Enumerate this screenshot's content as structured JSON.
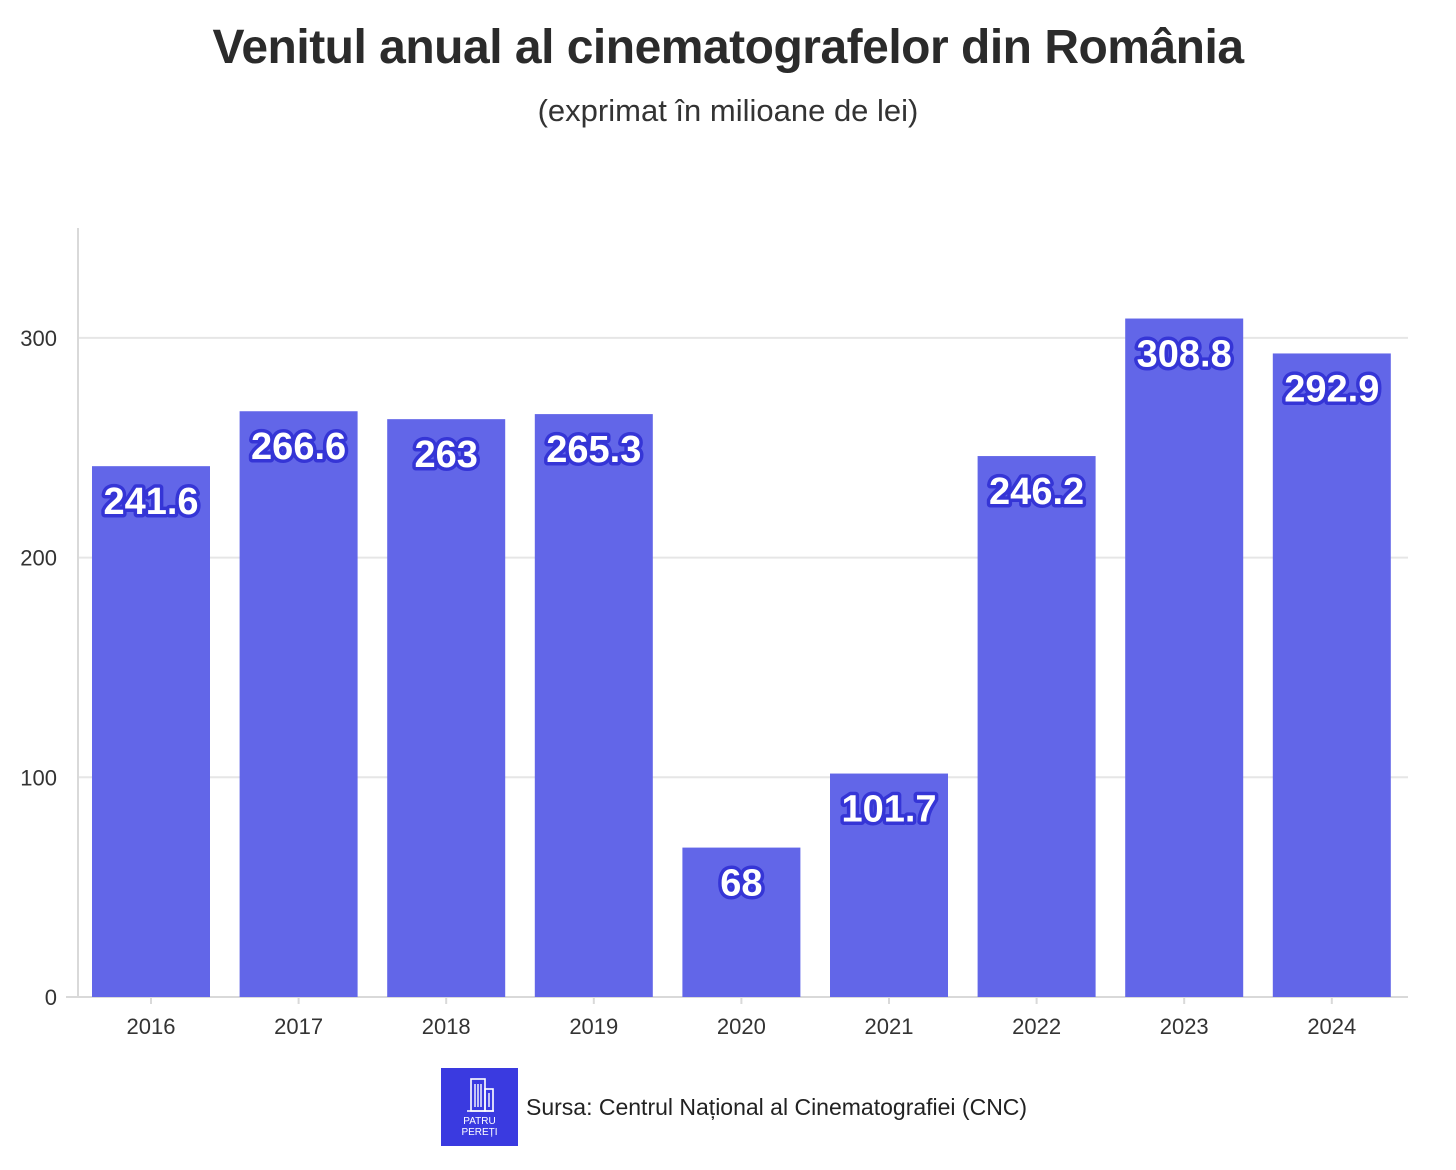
{
  "title": "Venitul anual al cinematografelor din România",
  "subtitle": "(exprimat în milioane de lei)",
  "chart_data": {
    "type": "bar",
    "title": "Venitul anual al cinematografelor din România",
    "subtitle": "(exprimat în milioane de lei)",
    "categories": [
      "2016",
      "2017",
      "2018",
      "2019",
      "2020",
      "2021",
      "2022",
      "2023",
      "2024"
    ],
    "values": [
      241.6,
      266.6,
      263,
      265.3,
      68,
      101.7,
      246.2,
      308.8,
      292.9
    ],
    "value_labels": [
      "241.6",
      "266.6",
      "263",
      "265.3",
      "68",
      "101.7",
      "246.2",
      "308.8",
      "292.9"
    ],
    "xlabel": "",
    "ylabel": "",
    "ylim": [
      0,
      350
    ],
    "yticks": [
      0,
      100,
      200,
      300
    ],
    "ytick_labels": [
      "0",
      "100",
      "200",
      "300"
    ],
    "grid": true,
    "legend": "none",
    "bar_color": "#6266e8",
    "label_outline_color": "#3535d6"
  },
  "footer": {
    "logo_text": "PATRU\nPEREȚI",
    "source": "Sursa: Centrul Național al Cinematografiei (CNC)"
  },
  "colors": {
    "logo_bg": "#3a3ae0",
    "grid": "#e6e6e6",
    "axis": "#d9d9d9"
  }
}
